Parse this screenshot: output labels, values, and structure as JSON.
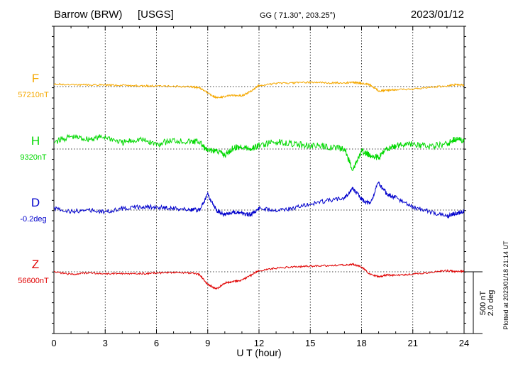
{
  "header": {
    "station": "Barrow (BRW)",
    "source": "[USGS]",
    "coords": "GG ( 71.30°, 203.25°)",
    "date": "2023/01/12"
  },
  "footer": {
    "plotted": "Plotted at 2023/01/18 21:14 UT"
  },
  "colors": {
    "F": "#f5a800",
    "H": "#00d800",
    "D": "#0000cc",
    "Z": "#e00000"
  },
  "chart_data": {
    "type": "line",
    "xlabel": "U T (hour)",
    "xlim": [
      0,
      24
    ],
    "xticks": [
      "0",
      "3",
      "6",
      "9",
      "12",
      "15",
      "18",
      "21",
      "24"
    ],
    "scale": {
      "value": "500 nT",
      "angle": "2.0 deg"
    },
    "x": [
      0,
      1,
      2,
      3,
      4,
      5,
      6,
      7,
      8,
      8.5,
      9,
      9.5,
      10,
      10.5,
      11,
      11.5,
      12,
      13,
      14,
      15,
      16,
      17,
      17.5,
      18,
      18.5,
      19,
      19.5,
      20,
      21,
      22,
      23,
      23.5,
      24
    ],
    "series": [
      {
        "name": "F",
        "baseline": "57210nT",
        "values": [
          57230,
          57225,
          57225,
          57222,
          57220,
          57215,
          57215,
          57212,
          57208,
          57200,
          57160,
          57120,
          57130,
          57140,
          57135,
          57170,
          57220,
          57235,
          57240,
          57245,
          57240,
          57240,
          57245,
          57235,
          57225,
          57175,
          57180,
          57185,
          57190,
          57205,
          57215,
          57225,
          57220
        ]
      },
      {
        "name": "H",
        "baseline": "9320nT",
        "values": [
          9380,
          9420,
          9400,
          9420,
          9370,
          9400,
          9360,
          9390,
          9380,
          9380,
          9300,
          9310,
          9270,
          9330,
          9340,
          9320,
          9350,
          9380,
          9360,
          9350,
          9340,
          9320,
          9150,
          9300,
          9270,
          9250,
          9320,
          9350,
          9360,
          9340,
          9360,
          9400,
          9390
        ]
      },
      {
        "name": "D",
        "baseline": "-0.2deg",
        "values": [
          -0.15,
          -0.25,
          -0.2,
          -0.25,
          -0.15,
          -0.1,
          -0.1,
          -0.15,
          -0.2,
          -0.2,
          0.3,
          -0.2,
          -0.35,
          -0.25,
          -0.3,
          -0.35,
          -0.15,
          -0.2,
          -0.15,
          0.0,
          0.1,
          0.2,
          0.5,
          0.15,
          0.0,
          0.7,
          0.3,
          0.2,
          -0.1,
          -0.25,
          -0.4,
          -0.3,
          -0.25
        ]
      },
      {
        "name": "Z",
        "baseline": "56600nT",
        "values": [
          56600,
          56580,
          56590,
          56585,
          56585,
          56585,
          56590,
          56595,
          56590,
          56580,
          56500,
          56460,
          56510,
          56520,
          56530,
          56570,
          56610,
          56630,
          56640,
          56645,
          56650,
          56655,
          56660,
          56640,
          56580,
          56560,
          56575,
          56570,
          56580,
          56595,
          56610,
          56600,
          56605
        ]
      }
    ]
  }
}
